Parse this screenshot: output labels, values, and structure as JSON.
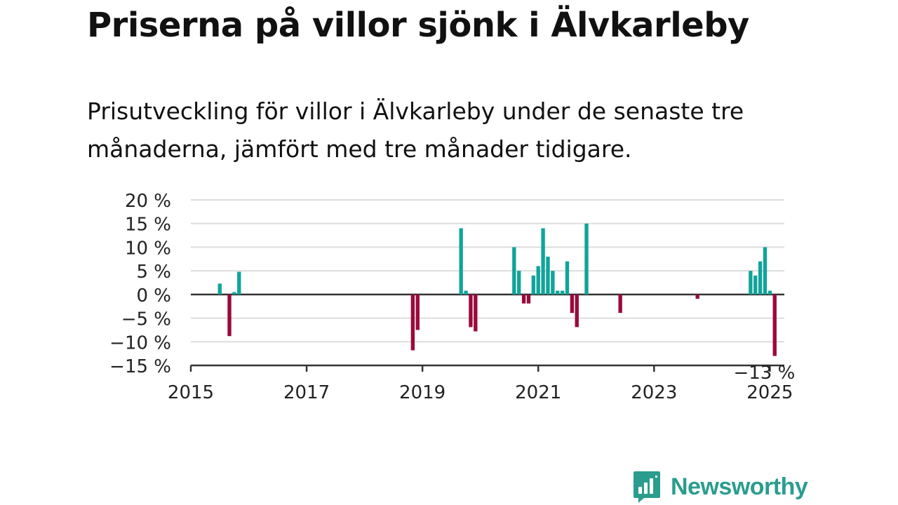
{
  "title": "Priserna på villor sjönk i Älvkarleby",
  "subtitle": "Prisutveckling för villor i Älvkarleby under de senaste tre månaderna, jämfört med tre månader tidigare.",
  "brand": {
    "name": "Newsworthy",
    "color": "#2a9d8f"
  },
  "colors": {
    "positive": "#11a39a",
    "negative": "#9a0a3c",
    "grid": "#dddddd",
    "zero": "#333333"
  },
  "chart_data": {
    "type": "bar",
    "xlabel": "",
    "ylabel": "",
    "ylim": [
      -15,
      20
    ],
    "yticks": [
      20,
      15,
      10,
      5,
      0,
      -5,
      -10,
      -15
    ],
    "ytick_labels": [
      "20 %",
      "15 %",
      "10 %",
      "5 %",
      "0 %",
      "−5 %",
      "−10 %",
      "−15 %"
    ],
    "xlim": [
      "2015-01",
      "2025-04"
    ],
    "xticks": [
      "2015-01",
      "2017-01",
      "2019-01",
      "2021-01",
      "2023-01",
      "2025-01"
    ],
    "xtick_labels": [
      "2015",
      "2017",
      "2019",
      "2021",
      "2023",
      "2025"
    ],
    "annotation": {
      "text": "−13 %",
      "x": "2025-01",
      "y": -13
    },
    "series": [
      {
        "x": [
          "2015-07",
          "2015-09",
          "2015-10",
          "2015-11",
          "2018-11",
          "2018-12",
          "2019-09",
          "2019-10",
          "2019-11",
          "2019-12",
          "2020-08",
          "2020-09",
          "2020-10",
          "2020-11",
          "2020-12",
          "2021-01",
          "2021-02",
          "2021-03",
          "2021-04",
          "2021-05",
          "2021-06",
          "2021-07",
          "2021-08",
          "2021-09",
          "2021-11",
          "2022-06",
          "2023-10",
          "2024-09",
          "2024-10",
          "2024-11",
          "2024-12",
          "2025-01",
          "2025-02"
        ],
        "values": [
          2.3,
          -8.8,
          0.5,
          4.8,
          -11.8,
          -7.5,
          14,
          0.8,
          -6.9,
          -7.8,
          10,
          5,
          -1.9,
          -1.9,
          4,
          6,
          14,
          8,
          5,
          0.8,
          0.8,
          7,
          -3.9,
          -6.9,
          15,
          -3.9,
          -0.9,
          5,
          4,
          7,
          10,
          0.8,
          -13
        ]
      }
    ]
  }
}
